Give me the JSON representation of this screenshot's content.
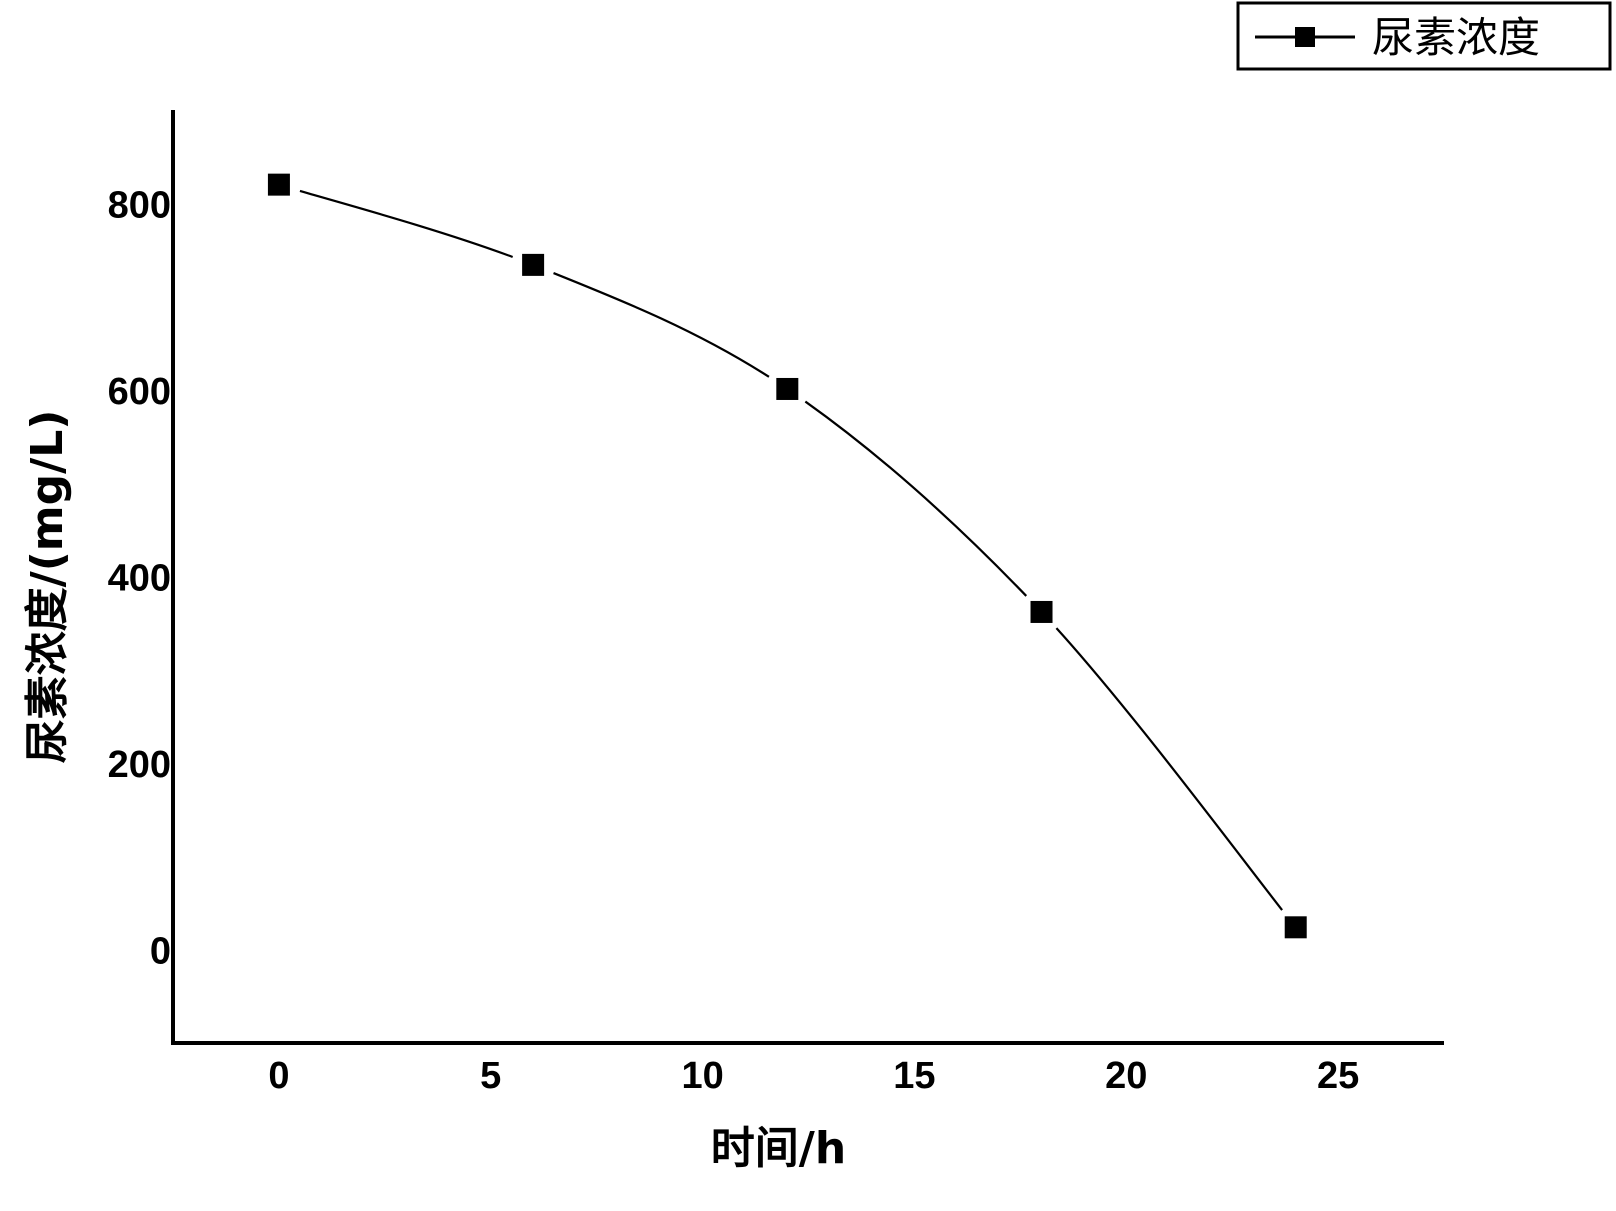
{
  "chart_data": {
    "type": "line",
    "title": "",
    "xlabel": "时间/h",
    "ylabel": "尿素浓度/(mg/L)",
    "x": [
      0,
      6,
      12,
      18,
      24
    ],
    "series": [
      {
        "name": "尿素浓度",
        "values": [
          820,
          734,
          601,
          362,
          24
        ]
      }
    ],
    "xlim": [
      -2.5,
      27.5
    ],
    "ylim": [
      -100,
      900
    ],
    "xticks": [
      0,
      5,
      10,
      15,
      20,
      25
    ],
    "yticks": [
      0,
      200,
      400,
      600,
      800
    ],
    "xtick_labels": [
      "0",
      "5",
      "10",
      "15",
      "20",
      "25"
    ],
    "ytick_labels": [
      "0",
      "200",
      "400",
      "600",
      "800"
    ],
    "legend_position": "top-right",
    "grid": false,
    "marker": "square",
    "line_color": "#000000"
  }
}
